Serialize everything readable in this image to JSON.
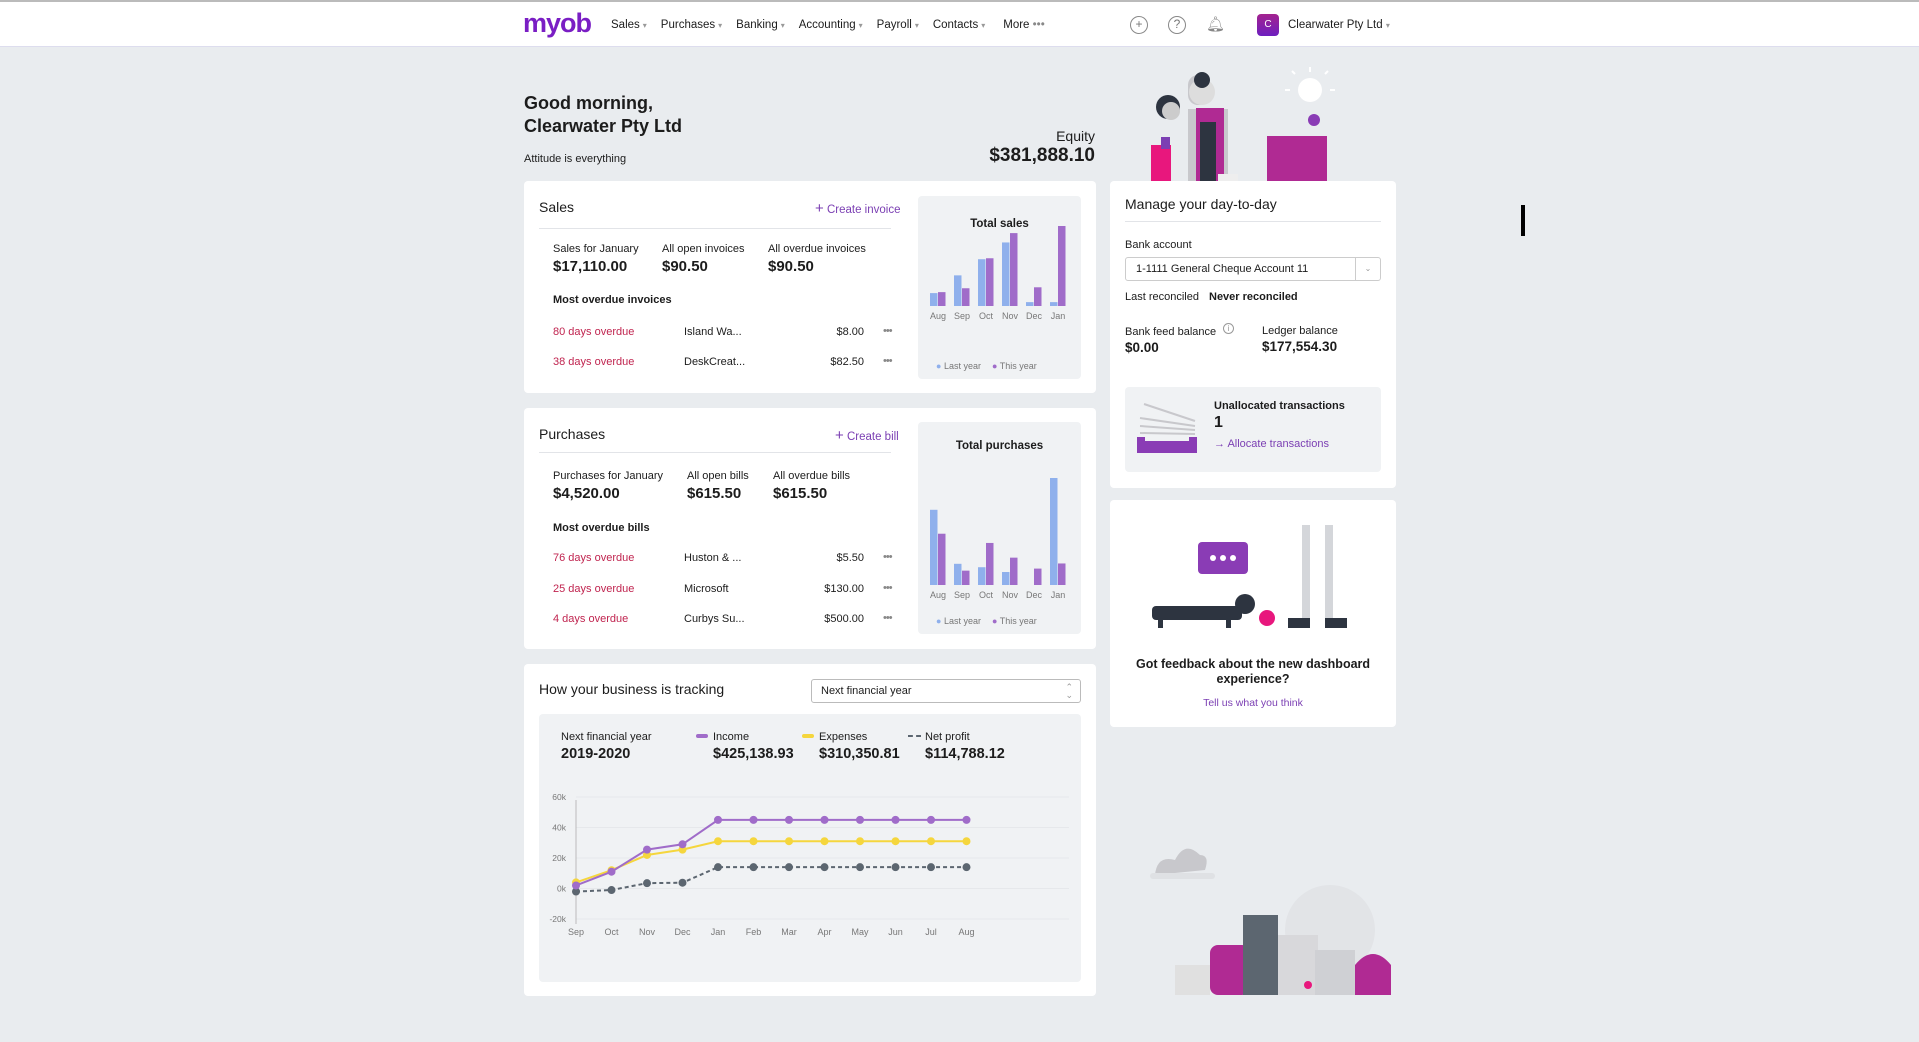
{
  "nav": {
    "logo": "myob",
    "items": [
      "Sales",
      "Purchases",
      "Banking",
      "Accounting",
      "Payroll",
      "Contacts"
    ],
    "more": "More",
    "business_initial": "C",
    "business": "Clearwater Pty Ltd",
    "icons": [
      "plus-circle-icon",
      "help-icon",
      "bell-icon"
    ]
  },
  "greeting": {
    "line1": "Good morning,",
    "line2": "Clearwater Pty Ltd",
    "tagline": "Attitude is everything",
    "equity_label": "Equity",
    "equity_value": "$381,888.10"
  },
  "sales": {
    "title": "Sales",
    "action": "Create invoice",
    "stats": [
      {
        "label": "Sales for January",
        "value": "$17,110.00"
      },
      {
        "label": "All open invoices",
        "value": "$90.50"
      },
      {
        "label": "All overdue invoices",
        "value": "$90.50"
      }
    ],
    "list_title": "Most overdue invoices",
    "rows": [
      {
        "status": "80 days overdue",
        "name": "Island Wa...",
        "amount": "$8.00"
      },
      {
        "status": "38 days overdue",
        "name": "DeskCreat...",
        "amount": "$82.50"
      }
    ]
  },
  "purchases": {
    "title": "Purchases",
    "action": "Create bill",
    "stats": [
      {
        "label": "Purchases for January",
        "value": "$4,520.00"
      },
      {
        "label": "All open bills",
        "value": "$615.50"
      },
      {
        "label": "All overdue bills",
        "value": "$615.50"
      }
    ],
    "list_title": "Most overdue bills",
    "rows": [
      {
        "status": "76 days overdue",
        "name": "Huston & ...",
        "amount": "$5.50"
      },
      {
        "status": "25 days overdue",
        "name": "Microsoft",
        "amount": "$130.00"
      },
      {
        "status": "4 days overdue",
        "name": "Curbys Su...",
        "amount": "$500.00"
      }
    ]
  },
  "tracking": {
    "title": "How your business is tracking",
    "select_value": "Next financial year",
    "period_label": "Next financial year",
    "period": "2019-2020",
    "totals": [
      {
        "name": "Income",
        "value": "$425,138.93"
      },
      {
        "name": "Expenses",
        "value": "$310,350.81"
      },
      {
        "name": "Net profit",
        "value": "$114,788.12"
      }
    ]
  },
  "manage": {
    "title": "Manage your day-to-day",
    "bank_label": "Bank account",
    "bank_value": "1-1111 General Cheque Account 11",
    "reconciled_label": "Last reconciled",
    "reconciled_value": "Never reconciled",
    "feed_label": "Bank feed balance",
    "feed_value": "$0.00",
    "ledger_label": "Ledger balance",
    "ledger_value": "$177,554.30",
    "unalloc_label": "Unallocated transactions",
    "unalloc_count": "1",
    "unalloc_link": "Allocate transactions"
  },
  "feedback": {
    "title": "Got feedback about the new dashboard experience?",
    "link": "Tell us what you think"
  },
  "colors": {
    "brand": "#7a1ec4",
    "last_year": "#8fb0ec",
    "this_year": "#a06cc9",
    "income": "#a06cc9",
    "expenses": "#f5d63d",
    "net_profit": "#5c6670",
    "overdue": "#c0244f"
  },
  "chart_data": [
    {
      "type": "bar",
      "title": "Total sales",
      "categories": [
        "Aug",
        "Sep",
        "Oct",
        "Nov",
        "Dec",
        "Jan"
      ],
      "series": [
        {
          "name": "Last year",
          "values": [
            40,
            95,
            145,
            197,
            12,
            12
          ]
        },
        {
          "name": "This year",
          "values": [
            43,
            55,
            148,
            226,
            58,
            248
          ]
        }
      ],
      "legend": "bottom"
    },
    {
      "type": "bar",
      "title": "Total purchases",
      "categories": [
        "Aug",
        "Sep",
        "Oct",
        "Nov",
        "Dec",
        "Jan"
      ],
      "series": [
        {
          "name": "Last year",
          "values": [
            220,
            62,
            52,
            38,
            0,
            313
          ]
        },
        {
          "name": "This year",
          "values": [
            150,
            42,
            123,
            80,
            48,
            63
          ]
        }
      ],
      "legend": "bottom"
    },
    {
      "type": "line",
      "categories": [
        "Sep",
        "Oct",
        "Nov",
        "Dec",
        "Jan",
        "Feb",
        "Mar",
        "Apr",
        "May",
        "Jun",
        "Jul",
        "Aug"
      ],
      "yticks": [
        "60k",
        "40k",
        "20k",
        "0k",
        "-20k"
      ],
      "ylim": [
        -20000,
        60000
      ],
      "series": [
        {
          "name": "Income",
          "values": [
            2000,
            11000,
            25500,
            29000,
            45000,
            45000,
            45000,
            45000,
            45000,
            45000,
            45000,
            45000
          ]
        },
        {
          "name": "Expenses",
          "values": [
            4000,
            12000,
            22000,
            25500,
            31000,
            31000,
            31000,
            31000,
            31000,
            31000,
            31000,
            31000
          ]
        },
        {
          "name": "Net profit",
          "values": [
            -2000,
            -1000,
            3500,
            3800,
            14000,
            14000,
            14000,
            14000,
            14000,
            14000,
            14000,
            14000
          ]
        }
      ],
      "legend": "top"
    }
  ]
}
